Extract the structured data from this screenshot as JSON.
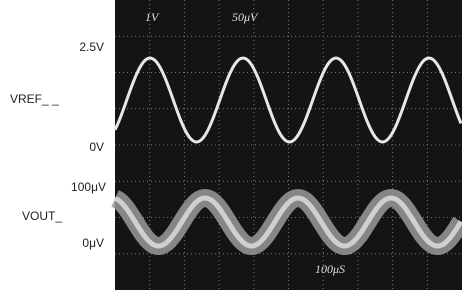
{
  "screen": {
    "ch1_scale": "1V",
    "ch2_scale": "50μV",
    "time_scale": "100μS"
  },
  "labels": {
    "vref_top": "2.5V",
    "vref_name": "VREF_ _",
    "vref_bottom": "0V",
    "vout_top": "100μV",
    "vout_name": "VOUT_",
    "vout_bottom": "0μV"
  }
}
